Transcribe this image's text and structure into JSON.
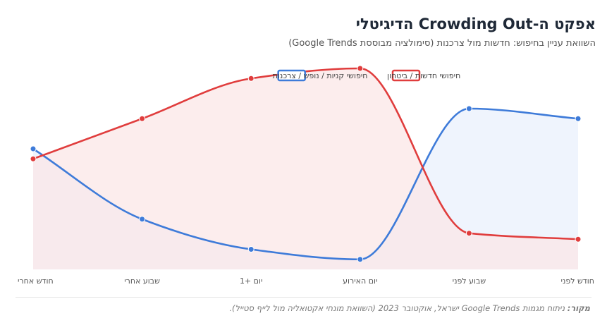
{
  "title": "אפקט ה-Crowding Out הדיגיטלי",
  "subtitle": "השוואת עניין בחיפוש: חדשות מול צרכנות (סימולציה מבוססת Google Trends)",
  "source_label": "מקור:",
  "source_text": "ניתוח מגמות Google Trends ישראל, אוקטובר 2023 (השוואת מונחי אקטואליה מול לייף סטייל).",
  "chart_data": {
    "type": "area",
    "title": "אפקט ה-Crowding Out הדיגיטלי",
    "subtitle": "השוואת עניין בחיפוש: חדשות מול צרכנות (סימולציה מבוססת Google Trends)",
    "categories": [
      "חודש לפני",
      "שבוע לפני",
      "יום האירוע",
      "יום +1",
      "שבוע אחרי",
      "חודש אחרי"
    ],
    "x_direction": "right-to-left",
    "ylim": [
      0,
      100
    ],
    "grid": false,
    "legend_position": "top-center",
    "series": [
      {
        "name": "חיפושי חדשות / ביטחון",
        "color": "#e03d3d",
        "fill": "#fbe7e7",
        "values": [
          15,
          18,
          100,
          95,
          75,
          55
        ]
      },
      {
        "name": "חיפושי קניות / נופש / צרכנות",
        "color": "#3e7bd9",
        "fill": "#e9f0fc",
        "values": [
          75,
          80,
          5,
          10,
          25,
          60
        ]
      }
    ]
  }
}
